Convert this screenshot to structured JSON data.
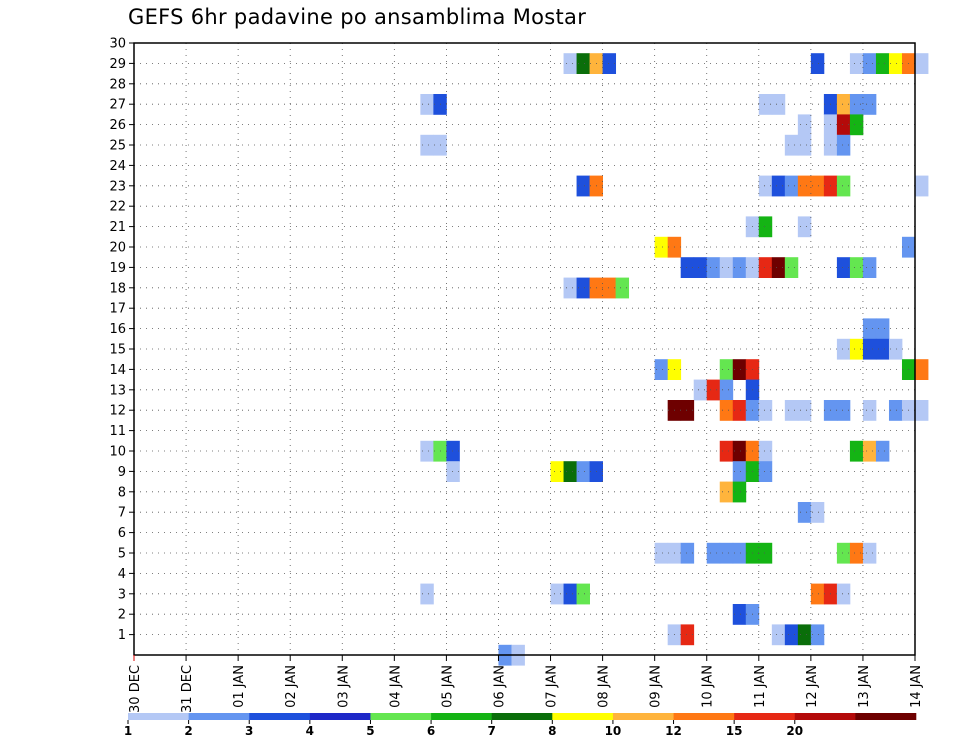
{
  "title": "GEFS 6hr padavine po ansamblima Mostar",
  "chart_data": {
    "type": "heatmap",
    "title": "GEFS 6hr padavine po ansamblima Mostar",
    "x_labels": [
      "30 DEC",
      "31 DEC",
      "01 JAN",
      "02 JAN",
      "03 JAN",
      "04 JAN",
      "05 JAN",
      "06 JAN",
      "07 JAN",
      "08 JAN",
      "09 JAN",
      "10 JAN",
      "11 JAN",
      "12 JAN",
      "13 JAN",
      "14 JAN"
    ],
    "y_ticks": [
      1,
      2,
      3,
      4,
      5,
      6,
      7,
      8,
      9,
      10,
      11,
      12,
      13,
      14,
      15,
      16,
      17,
      18,
      19,
      20,
      21,
      22,
      23,
      24,
      25,
      26,
      27,
      28,
      29,
      30
    ],
    "x_range_steps": [
      0,
      60
    ],
    "y_range": [
      0,
      30
    ],
    "grid": true,
    "step": "6 hr",
    "legend": {
      "placement": "bottom",
      "labels": [
        "1",
        "2",
        "3",
        "4",
        "5",
        "6",
        "7",
        "8",
        "10",
        "12",
        "15",
        "20"
      ],
      "colors": [
        "#b4c8f5",
        "#6495f0",
        "#1e50dc",
        "#1e28c8",
        "#64e650",
        "#14b414",
        "#0a6e0a",
        "#ffff00",
        "#ffb43c",
        "#ff7814",
        "#e62814",
        "#b40a0a",
        "#6e0000"
      ]
    },
    "cells": [
      {
        "m": 29,
        "t": 33,
        "c": 0
      },
      {
        "m": 29,
        "t": 34,
        "c": 6
      },
      {
        "m": 29,
        "t": 35,
        "c": 8
      },
      {
        "m": 29,
        "t": 36,
        "c": 2
      },
      {
        "m": 29,
        "t": 52,
        "c": 2
      },
      {
        "m": 29,
        "t": 55,
        "c": 0
      },
      {
        "m": 29,
        "t": 56,
        "c": 1
      },
      {
        "m": 29,
        "t": 57,
        "c": 5
      },
      {
        "m": 29,
        "t": 58,
        "c": 7
      },
      {
        "m": 29,
        "t": 59,
        "c": 9
      },
      {
        "m": 29,
        "t": 60,
        "c": 0
      },
      {
        "m": 27,
        "t": 22,
        "c": 0
      },
      {
        "m": 27,
        "t": 23,
        "c": 2
      },
      {
        "m": 27,
        "t": 48,
        "c": 0
      },
      {
        "m": 27,
        "t": 49,
        "c": 0
      },
      {
        "m": 27,
        "t": 53,
        "c": 2
      },
      {
        "m": 27,
        "t": 54,
        "c": 8
      },
      {
        "m": 27,
        "t": 55,
        "c": 1
      },
      {
        "m": 27,
        "t": 56,
        "c": 1
      },
      {
        "m": 26,
        "t": 51,
        "c": 0
      },
      {
        "m": 26,
        "t": 53,
        "c": 0
      },
      {
        "m": 26,
        "t": 54,
        "c": 11
      },
      {
        "m": 26,
        "t": 55,
        "c": 5
      },
      {
        "m": 25,
        "t": 22,
        "c": 0
      },
      {
        "m": 25,
        "t": 23,
        "c": 0
      },
      {
        "m": 25,
        "t": 50,
        "c": 0
      },
      {
        "m": 25,
        "t": 51,
        "c": 0
      },
      {
        "m": 25,
        "t": 53,
        "c": 0
      },
      {
        "m": 25,
        "t": 54,
        "c": 1
      },
      {
        "m": 23,
        "t": 34,
        "c": 2
      },
      {
        "m": 23,
        "t": 35,
        "c": 9
      },
      {
        "m": 23,
        "t": 48,
        "c": 0
      },
      {
        "m": 23,
        "t": 49,
        "c": 2
      },
      {
        "m": 23,
        "t": 50,
        "c": 1
      },
      {
        "m": 23,
        "t": 51,
        "c": 9
      },
      {
        "m": 23,
        "t": 52,
        "c": 9
      },
      {
        "m": 23,
        "t": 53,
        "c": 10
      },
      {
        "m": 23,
        "t": 54,
        "c": 4
      },
      {
        "m": 23,
        "t": 60,
        "c": 0
      },
      {
        "m": 21,
        "t": 47,
        "c": 0
      },
      {
        "m": 21,
        "t": 48,
        "c": 5
      },
      {
        "m": 21,
        "t": 51,
        "c": 0
      },
      {
        "m": 20,
        "t": 40,
        "c": 7
      },
      {
        "m": 20,
        "t": 41,
        "c": 9
      },
      {
        "m": 20,
        "t": 59,
        "c": 1
      },
      {
        "m": 19,
        "t": 42,
        "c": 2
      },
      {
        "m": 19,
        "t": 43,
        "c": 2
      },
      {
        "m": 19,
        "t": 44,
        "c": 1
      },
      {
        "m": 19,
        "t": 45,
        "c": 0
      },
      {
        "m": 19,
        "t": 46,
        "c": 1
      },
      {
        "m": 19,
        "t": 47,
        "c": 0
      },
      {
        "m": 19,
        "t": 48,
        "c": 10
      },
      {
        "m": 19,
        "t": 49,
        "c": 12
      },
      {
        "m": 19,
        "t": 50,
        "c": 4
      },
      {
        "m": 19,
        "t": 54,
        "c": 2
      },
      {
        "m": 19,
        "t": 55,
        "c": 4
      },
      {
        "m": 19,
        "t": 56,
        "c": 1
      },
      {
        "m": 18,
        "t": 33,
        "c": 0
      },
      {
        "m": 18,
        "t": 34,
        "c": 2
      },
      {
        "m": 18,
        "t": 35,
        "c": 9
      },
      {
        "m": 18,
        "t": 36,
        "c": 9
      },
      {
        "m": 18,
        "t": 37,
        "c": 4
      },
      {
        "m": 16,
        "t": 56,
        "c": 1
      },
      {
        "m": 16,
        "t": 57,
        "c": 1
      },
      {
        "m": 15,
        "t": 54,
        "c": 0
      },
      {
        "m": 15,
        "t": 55,
        "c": 7
      },
      {
        "m": 15,
        "t": 56,
        "c": 2
      },
      {
        "m": 15,
        "t": 57,
        "c": 2
      },
      {
        "m": 15,
        "t": 58,
        "c": 0
      },
      {
        "m": 14,
        "t": 40,
        "c": 1
      },
      {
        "m": 14,
        "t": 41,
        "c": 7
      },
      {
        "m": 14,
        "t": 45,
        "c": 4
      },
      {
        "m": 14,
        "t": 46,
        "c": 12
      },
      {
        "m": 14,
        "t": 47,
        "c": 10
      },
      {
        "m": 14,
        "t": 59,
        "c": 5
      },
      {
        "m": 14,
        "t": 60,
        "c": 9
      },
      {
        "m": 13,
        "t": 43,
        "c": 0
      },
      {
        "m": 13,
        "t": 44,
        "c": 10
      },
      {
        "m": 13,
        "t": 45,
        "c": 1
      },
      {
        "m": 13,
        "t": 47,
        "c": 2
      },
      {
        "m": 12,
        "t": 41,
        "c": 12
      },
      {
        "m": 12,
        "t": 42,
        "c": 12
      },
      {
        "m": 12,
        "t": 45,
        "c": 9
      },
      {
        "m": 12,
        "t": 46,
        "c": 10
      },
      {
        "m": 12,
        "t": 47,
        "c": 1
      },
      {
        "m": 12,
        "t": 48,
        "c": 0
      },
      {
        "m": 12,
        "t": 50,
        "c": 0
      },
      {
        "m": 12,
        "t": 51,
        "c": 0
      },
      {
        "m": 12,
        "t": 53,
        "c": 1
      },
      {
        "m": 12,
        "t": 54,
        "c": 1
      },
      {
        "m": 12,
        "t": 56,
        "c": 0
      },
      {
        "m": 12,
        "t": 58,
        "c": 1
      },
      {
        "m": 12,
        "t": 59,
        "c": 0
      },
      {
        "m": 12,
        "t": 60,
        "c": 0
      },
      {
        "m": 10,
        "t": 22,
        "c": 0
      },
      {
        "m": 10,
        "t": 23,
        "c": 4
      },
      {
        "m": 10,
        "t": 24,
        "c": 2
      },
      {
        "m": 10,
        "t": 45,
        "c": 10
      },
      {
        "m": 10,
        "t": 46,
        "c": 12
      },
      {
        "m": 10,
        "t": 47,
        "c": 9
      },
      {
        "m": 10,
        "t": 48,
        "c": 0
      },
      {
        "m": 10,
        "t": 55,
        "c": 5
      },
      {
        "m": 10,
        "t": 56,
        "c": 8
      },
      {
        "m": 10,
        "t": 57,
        "c": 1
      },
      {
        "m": 9,
        "t": 24,
        "c": 0
      },
      {
        "m": 9,
        "t": 32,
        "c": 7
      },
      {
        "m": 9,
        "t": 33,
        "c": 6
      },
      {
        "m": 9,
        "t": 34,
        "c": 1
      },
      {
        "m": 9,
        "t": 35,
        "c": 2
      },
      {
        "m": 9,
        "t": 46,
        "c": 1
      },
      {
        "m": 9,
        "t": 47,
        "c": 5
      },
      {
        "m": 9,
        "t": 48,
        "c": 1
      },
      {
        "m": 8,
        "t": 45,
        "c": 8
      },
      {
        "m": 8,
        "t": 46,
        "c": 5
      },
      {
        "m": 7,
        "t": 51,
        "c": 1
      },
      {
        "m": 7,
        "t": 52,
        "c": 0
      },
      {
        "m": 5,
        "t": 40,
        "c": 0
      },
      {
        "m": 5,
        "t": 41,
        "c": 0
      },
      {
        "m": 5,
        "t": 42,
        "c": 1
      },
      {
        "m": 5,
        "t": 44,
        "c": 1
      },
      {
        "m": 5,
        "t": 45,
        "c": 1
      },
      {
        "m": 5,
        "t": 46,
        "c": 1
      },
      {
        "m": 5,
        "t": 47,
        "c": 5
      },
      {
        "m": 5,
        "t": 48,
        "c": 5
      },
      {
        "m": 5,
        "t": 54,
        "c": 4
      },
      {
        "m": 5,
        "t": 55,
        "c": 9
      },
      {
        "m": 5,
        "t": 56,
        "c": 0
      },
      {
        "m": 3,
        "t": 22,
        "c": 0
      },
      {
        "m": 3,
        "t": 32,
        "c": 0
      },
      {
        "m": 3,
        "t": 33,
        "c": 2
      },
      {
        "m": 3,
        "t": 34,
        "c": 4
      },
      {
        "m": 3,
        "t": 52,
        "c": 9
      },
      {
        "m": 3,
        "t": 53,
        "c": 10
      },
      {
        "m": 3,
        "t": 54,
        "c": 0
      },
      {
        "m": 2,
        "t": 46,
        "c": 2
      },
      {
        "m": 2,
        "t": 47,
        "c": 1
      },
      {
        "m": 1,
        "t": 41,
        "c": 0
      },
      {
        "m": 1,
        "t": 42,
        "c": 10
      },
      {
        "m": 1,
        "t": 49,
        "c": 0
      },
      {
        "m": 1,
        "t": 50,
        "c": 2
      },
      {
        "m": 1,
        "t": 51,
        "c": 6
      },
      {
        "m": 1,
        "t": 52,
        "c": 1
      },
      {
        "m": 0,
        "t": 28,
        "c": 1
      },
      {
        "m": 0,
        "t": 29,
        "c": 0
      }
    ]
  }
}
